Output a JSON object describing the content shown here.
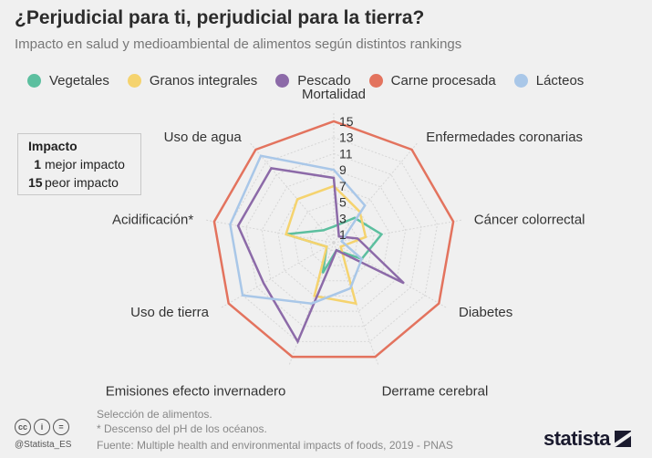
{
  "header": {
    "title": "¿Perjudicial para ti, perjudicial para la tierra?",
    "subtitle": "Impacto en salud y medioambiental de alimentos según distintos rankings"
  },
  "legend_box": {
    "heading": "Impacto",
    "best_num": "1",
    "best_text": "mejor impacto",
    "worst_num": "15",
    "worst_text": "peor impacto"
  },
  "footer": {
    "note1": "Selección de alimentos.",
    "note2": "* Descenso del pH de los océanos.",
    "source": "Fuente: Multiple health and environmental impacts of foods, 2019 - PNAS",
    "handle": "@Statista_ES",
    "brand": "statista"
  },
  "chart_data": {
    "type": "radar",
    "title": "¿Perjudicial para ti, perjudicial para la tierra?",
    "axes": [
      "Mortalidad",
      "Enfermedades coronarias",
      "Cáncer colorrectal",
      "Diabetes",
      "Derrame cerebral",
      "Emisiones efecto invernadero",
      "Uso de tierra",
      "Acidificación*",
      "Uso de agua"
    ],
    "ticks": [
      1,
      3,
      5,
      7,
      9,
      11,
      13,
      15
    ],
    "range": [
      0,
      16
    ],
    "series": [
      {
        "name": "Vegetales",
        "color": "#5cbf9f",
        "values": [
          2,
          4,
          6,
          4,
          1,
          4,
          1,
          6,
          2
        ]
      },
      {
        "name": "Granos integrales",
        "color": "#f5d36e",
        "values": [
          7,
          5,
          4,
          1,
          8,
          7,
          1,
          6,
          7
        ]
      },
      {
        "name": "Pescado",
        "color": "#8c6aa8",
        "values": [
          8,
          1,
          3,
          10,
          1,
          13,
          10,
          12,
          12
        ]
      },
      {
        "name": "Carne procesada",
        "color": "#e3735e",
        "values": [
          15,
          15,
          15,
          15,
          15,
          15,
          15,
          15,
          15
        ]
      },
      {
        "name": "Lácteos",
        "color": "#a9c7e8",
        "values": [
          9,
          6,
          1,
          4,
          6,
          8,
          13,
          13,
          14
        ]
      }
    ]
  }
}
